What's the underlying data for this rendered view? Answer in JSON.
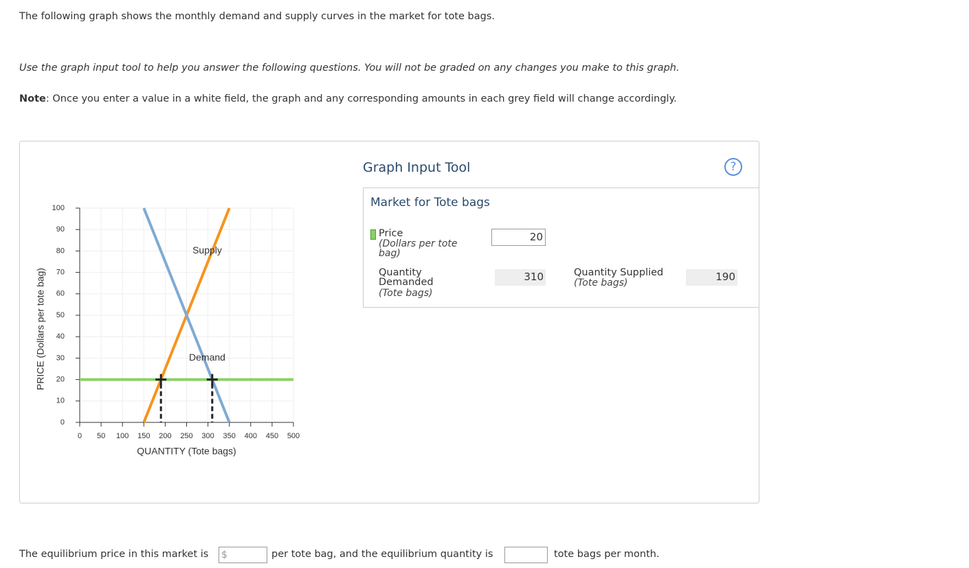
{
  "intro": "The following graph shows the monthly demand and supply curves in the market for tote bags.",
  "instruction": "Use the graph input tool to help you answer the following questions. You will not be graded on any changes you make to this graph.",
  "note": {
    "label": "Note",
    "text": ": Once you enter a value in a white field, the graph and any corresponding amounts in each grey field will change accordingly."
  },
  "chart_data": {
    "type": "line",
    "xlabel": "QUANTITY (Tote bags)",
    "ylabel": "PRICE (Dollars per tote bag)",
    "xlim": [
      0,
      500
    ],
    "xticks": [
      0,
      50,
      100,
      150,
      200,
      250,
      300,
      350,
      400,
      450,
      500
    ],
    "ylim": [
      0,
      100
    ],
    "yticks": [
      0,
      10,
      20,
      30,
      40,
      50,
      60,
      70,
      80,
      90,
      100
    ],
    "grid": true,
    "series": [
      {
        "name": "Supply",
        "color": "#f7941d",
        "x": [
          150,
          350
        ],
        "values": [
          0,
          100
        ]
      },
      {
        "name": "Demand",
        "color": "#80aad3",
        "x": [
          150,
          350
        ],
        "values": [
          100,
          0
        ]
      }
    ],
    "price_line_color": "#8ad166"
  },
  "tool": {
    "title": "Graph Input Tool",
    "help": "?",
    "panel_title": "Market for Tote bags",
    "price_label": "Price",
    "price_unit": "(Dollars per tote bag)",
    "price_value": 20,
    "qd_label": "Quantity Demanded",
    "qd_unit": "(Tote bags)",
    "qd_value": 310,
    "qs_label": "Quantity Supplied",
    "qs_unit": "(Tote bags)",
    "qs_value": 190
  },
  "question": {
    "part1": "The equilibrium price in this market is",
    "currency": "$",
    "part2": "per tote bag, and the equilibrium quantity is",
    "part3": "tote bags per month."
  }
}
